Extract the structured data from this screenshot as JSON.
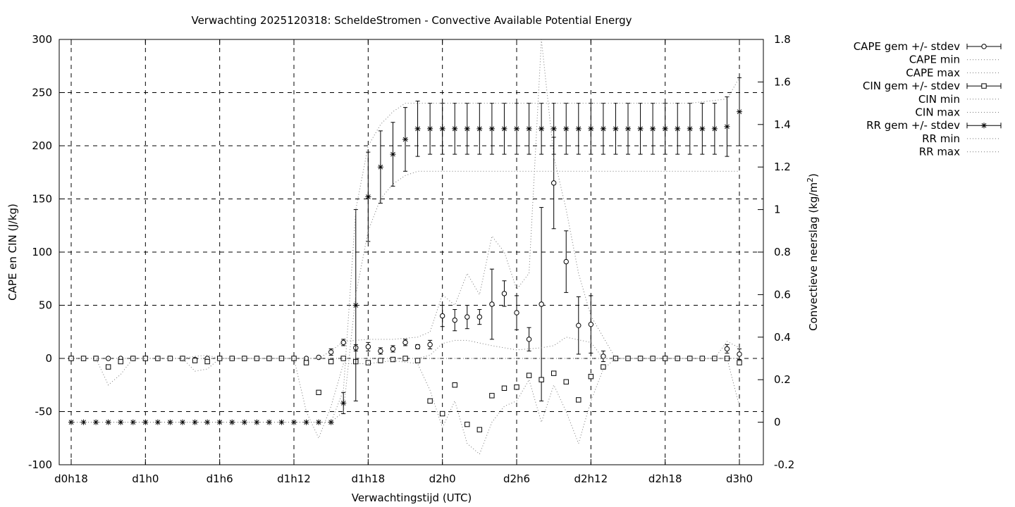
{
  "chart_data": {
    "type": "line",
    "title": "Verwachting 2025120318: ScheldeStromen - Convective Available Potential Energy",
    "xlabel": "Verwachtingstijd (UTC)",
    "ylabel": "CAPE en CIN (J/kg)",
    "y2label_main": "Convectieve neerslag (kg/m",
    "y2label_sup": "2",
    "y2label_end": ")",
    "xlim": [
      0,
      54
    ],
    "ylim": [
      -100,
      300
    ],
    "y2lim": [
      -0.2,
      1.8
    ],
    "grid": true,
    "legend_position": "top-right, outside plot",
    "x_ticks": [
      {
        "x": 0,
        "label": "d0h18"
      },
      {
        "x": 6,
        "label": "d1h0"
      },
      {
        "x": 12,
        "label": "d1h6"
      },
      {
        "x": 18,
        "label": "d1h12"
      },
      {
        "x": 24,
        "label": "d1h18"
      },
      {
        "x": 30,
        "label": "d2h0"
      },
      {
        "x": 36,
        "label": "d2h6"
      },
      {
        "x": 42,
        "label": "d2h12"
      },
      {
        "x": 48,
        "label": "d2h18"
      },
      {
        "x": 54,
        "label": "d3h0"
      }
    ],
    "y_ticks": [
      {
        "v": 300,
        "label": "300"
      },
      {
        "v": 250,
        "label": "250"
      },
      {
        "v": 200,
        "label": "200"
      },
      {
        "v": 150,
        "label": "150"
      },
      {
        "v": 100,
        "label": "100"
      },
      {
        "v": 50,
        "label": "50"
      },
      {
        "v": 0,
        "label": "0"
      },
      {
        "v": -50,
        "label": "-50"
      },
      {
        "v": -100,
        "label": "-100"
      }
    ],
    "y2_ticks": [
      {
        "v": 1.8,
        "label": "1.8"
      },
      {
        "v": 1.6,
        "label": "1.6"
      },
      {
        "v": 1.4,
        "label": "1.4"
      },
      {
        "v": 1.2,
        "label": "1.2"
      },
      {
        "v": 1.0,
        "label": "1"
      },
      {
        "v": 0.8,
        "label": "0.8"
      },
      {
        "v": 0.6,
        "label": "0.6"
      },
      {
        "v": 0.4,
        "label": "0.4"
      },
      {
        "v": 0.2,
        "label": "0.2"
      },
      {
        "v": 0.0,
        "label": "0"
      },
      {
        "v": -0.2,
        "label": "-0.2"
      }
    ],
    "series": [
      {
        "name": "CAPE gem +/- stdev",
        "style": "points-errorbars",
        "marker": "circle",
        "axis": "y1",
        "x": [
          0,
          1,
          2,
          3,
          4,
          5,
          6,
          7,
          8,
          9,
          10,
          11,
          12,
          13,
          14,
          15,
          16,
          17,
          18,
          19,
          20,
          21,
          22,
          23,
          24,
          25,
          26,
          27,
          28,
          29,
          30,
          31,
          32,
          33,
          34,
          35,
          36,
          37,
          38,
          39,
          40,
          41,
          42,
          43,
          44,
          45,
          46,
          47,
          48,
          49,
          50,
          51,
          52,
          53,
          54
        ],
        "y": [
          0,
          0,
          0,
          0,
          0,
          0,
          0,
          0,
          0,
          0,
          -1,
          0,
          0,
          0,
          0,
          0,
          0,
          0,
          0,
          0,
          1,
          6,
          15,
          10,
          11,
          7,
          9,
          15,
          11,
          13,
          40,
          36,
          39,
          39,
          51,
          61,
          43,
          18,
          51,
          165,
          91,
          31,
          32,
          2,
          0,
          0,
          0,
          0,
          0,
          0,
          0,
          0,
          0,
          9,
          4
        ],
        "err": [
          0,
          0,
          0,
          0,
          0,
          0,
          0,
          0,
          0,
          0,
          1,
          0,
          0,
          0,
          0,
          0,
          0,
          0,
          0,
          0,
          0,
          3,
          3,
          3,
          4,
          3,
          3,
          3,
          2,
          4,
          10,
          10,
          11,
          7,
          33,
          12,
          16,
          11,
          91,
          43,
          29,
          27,
          27,
          5,
          0,
          0,
          0,
          0,
          0,
          0,
          0,
          0,
          0,
          4,
          5
        ]
      },
      {
        "name": "CAPE min",
        "style": "dotted-line",
        "axis": "y1",
        "x": [
          0,
          3,
          6,
          9,
          12,
          15,
          18,
          20,
          22,
          24,
          26,
          28,
          29,
          30,
          31,
          32,
          34,
          36,
          38,
          39,
          40,
          42,
          43,
          54
        ],
        "y": [
          0,
          0,
          0,
          0,
          0,
          0,
          0,
          0,
          0,
          0,
          0,
          0,
          3,
          14,
          17,
          17,
          12,
          8,
          10,
          12,
          20,
          15,
          0,
          0
        ]
      },
      {
        "name": "CAPE max",
        "style": "dotted-line",
        "axis": "y1",
        "x": [
          0,
          3,
          5,
          6,
          9,
          10,
          11,
          12,
          15,
          18,
          20,
          21,
          22,
          24,
          26,
          27,
          28,
          29,
          30,
          31,
          32,
          33,
          34,
          35,
          36,
          37,
          38,
          39,
          40,
          41,
          42,
          43,
          44,
          50,
          52,
          53,
          54
        ],
        "y": [
          0,
          0,
          0,
          0,
          0,
          2,
          3,
          0,
          0,
          0,
          0,
          7,
          16,
          18,
          18,
          19,
          20,
          25,
          60,
          50,
          80,
          60,
          115,
          100,
          65,
          80,
          300,
          190,
          140,
          80,
          40,
          20,
          0,
          0,
          0,
          16,
          10
        ]
      },
      {
        "name": "CIN gem +/- stdev",
        "style": "points-errorbars",
        "marker": "square",
        "axis": "y1",
        "x": [
          0,
          1,
          2,
          3,
          4,
          5,
          6,
          7,
          8,
          9,
          10,
          11,
          12,
          13,
          14,
          15,
          16,
          17,
          18,
          19,
          20,
          21,
          22,
          23,
          24,
          25,
          26,
          27,
          28,
          29,
          30,
          31,
          32,
          33,
          34,
          35,
          36,
          37,
          38,
          39,
          40,
          41,
          42,
          43,
          44,
          45,
          46,
          47,
          48,
          49,
          50,
          51,
          52,
          53,
          54
        ],
        "y": [
          0,
          0,
          0,
          -8,
          -3,
          0,
          0,
          0,
          0,
          0,
          -2,
          -3,
          0,
          0,
          0,
          0,
          0,
          0,
          0,
          -4,
          -32,
          -3,
          0,
          -3,
          -4,
          -2,
          -1,
          0,
          -2,
          -40,
          -52,
          -25,
          -62,
          -67,
          -35,
          -28,
          -27,
          -16,
          -20,
          -14,
          -22,
          -39,
          -17,
          -8,
          0,
          0,
          0,
          0,
          0,
          0,
          0,
          0,
          0,
          0,
          -4
        ]
      },
      {
        "name": "CIN min",
        "style": "dotted-line",
        "axis": "y1",
        "x": [
          0,
          1,
          2,
          3,
          4,
          5,
          6,
          9,
          10,
          11,
          12,
          15,
          18,
          19,
          20,
          21,
          22,
          23,
          24,
          26,
          28,
          29,
          30,
          31,
          32,
          33,
          34,
          35,
          36,
          37,
          38,
          39,
          40,
          41,
          42,
          43,
          44,
          53,
          54
        ],
        "y": [
          0,
          0,
          0,
          -25,
          -15,
          0,
          0,
          0,
          -12,
          -10,
          0,
          0,
          0,
          -50,
          -75,
          -45,
          -5,
          -5,
          -5,
          -2,
          -5,
          -30,
          -65,
          -40,
          -80,
          -90,
          -60,
          -45,
          -40,
          -20,
          -60,
          -25,
          -50,
          -80,
          -40,
          -10,
          0,
          0,
          -45
        ]
      },
      {
        "name": "CIN max",
        "style": "dotted-line",
        "axis": "y1",
        "x": [
          0,
          54
        ],
        "y": [
          0,
          0
        ]
      },
      {
        "name": "RR gem +/- stdev",
        "style": "points-errorbars",
        "marker": "star",
        "axis": "y2",
        "x": [
          0,
          1,
          2,
          3,
          4,
          5,
          6,
          7,
          8,
          9,
          10,
          11,
          12,
          13,
          14,
          15,
          16,
          17,
          18,
          19,
          20,
          21,
          22,
          23,
          24,
          25,
          26,
          27,
          28,
          29,
          30,
          31,
          32,
          33,
          34,
          35,
          36,
          37,
          38,
          39,
          40,
          41,
          42,
          43,
          44,
          45,
          46,
          47,
          48,
          49,
          50,
          51,
          52,
          53,
          54
        ],
        "y": [
          0,
          0,
          0,
          0,
          0,
          0,
          0,
          0,
          0,
          0,
          0,
          0,
          0,
          0,
          0,
          0,
          0,
          0,
          0,
          0,
          0,
          0,
          0.09,
          0.55,
          1.06,
          1.2,
          1.26,
          1.33,
          1.38,
          1.38,
          1.38,
          1.38,
          1.38,
          1.38,
          1.38,
          1.38,
          1.38,
          1.38,
          1.38,
          1.38,
          1.38,
          1.38,
          1.38,
          1.38,
          1.38,
          1.38,
          1.38,
          1.38,
          1.38,
          1.38,
          1.38,
          1.38,
          1.38,
          1.39,
          1.46
        ],
        "err": [
          0,
          0,
          0,
          0,
          0,
          0,
          0,
          0,
          0,
          0,
          0,
          0,
          0,
          0,
          0,
          0,
          0,
          0,
          0,
          0,
          0,
          0,
          0.05,
          0.45,
          0.21,
          0.17,
          0.15,
          0.15,
          0.13,
          0.12,
          0.12,
          0.12,
          0.12,
          0.12,
          0.12,
          0.12,
          0.12,
          0.12,
          0.12,
          0.12,
          0.12,
          0.12,
          0.12,
          0.12,
          0.12,
          0.12,
          0.12,
          0.12,
          0.12,
          0.12,
          0.12,
          0.12,
          0.12,
          0.14,
          0.16
        ]
      },
      {
        "name": "RR min",
        "style": "dotted-line",
        "axis": "y2",
        "x": [
          0,
          21,
          22,
          23,
          24,
          25,
          26,
          27,
          28,
          29,
          30,
          35,
          40,
          45,
          50,
          54
        ],
        "y": [
          0,
          0,
          0.05,
          0.6,
          0.9,
          1.05,
          1.12,
          1.16,
          1.18,
          1.18,
          1.18,
          1.18,
          1.18,
          1.18,
          1.18,
          1.18
        ]
      },
      {
        "name": "RR max",
        "style": "dotted-line",
        "axis": "y2",
        "x": [
          0,
          21,
          22,
          23,
          24,
          25,
          26,
          27,
          28,
          29,
          30,
          35,
          40,
          45,
          50,
          53,
          54
        ],
        "y": [
          0,
          0,
          0.15,
          1.0,
          1.3,
          1.4,
          1.46,
          1.5,
          1.5,
          1.5,
          1.5,
          1.5,
          1.5,
          1.5,
          1.5,
          1.52,
          1.62
        ]
      }
    ]
  }
}
